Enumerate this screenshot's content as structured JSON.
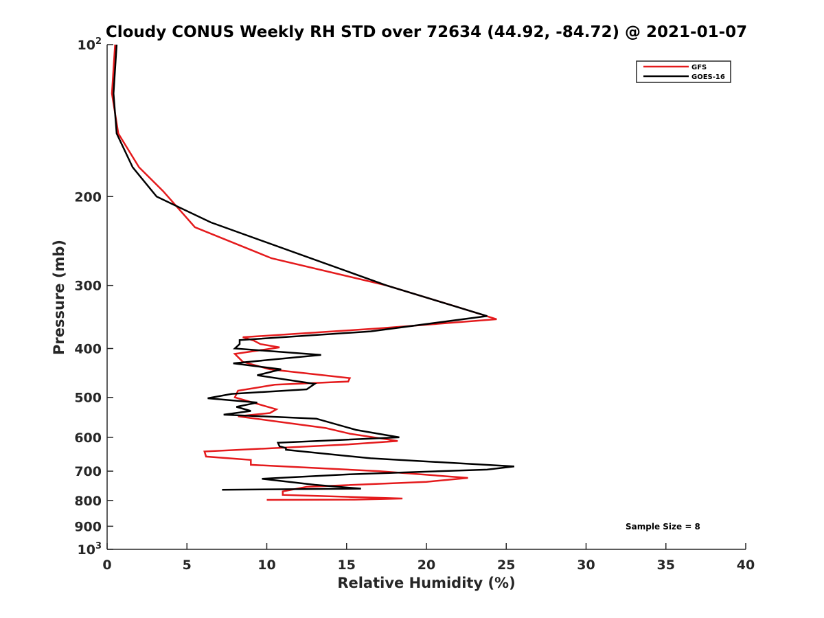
{
  "chart_data": {
    "type": "line",
    "title": "Cloudy CONUS Weekly RH STD over 72634 (44.92, -84.72) @ 2021-01-07",
    "xlabel": "Relative Humidity (%)",
    "ylabel": "Pressure (mb)",
    "xlim": [
      0,
      40
    ],
    "ylim": [
      100,
      1000
    ],
    "y_scale": "log",
    "y_reversed": true,
    "grid": false,
    "legend_position": "top-right",
    "x_ticks": [
      "0",
      "5",
      "10",
      "15",
      "20",
      "25",
      "30",
      "35",
      "40"
    ],
    "y_ticks": [
      {
        "value": 100,
        "base": "10",
        "exp": "2"
      },
      {
        "value": 200,
        "label": "200"
      },
      {
        "value": 300,
        "label": "300"
      },
      {
        "value": 400,
        "label": "400"
      },
      {
        "value": 500,
        "label": "500"
      },
      {
        "value": 600,
        "label": "600"
      },
      {
        "value": 700,
        "label": "700"
      },
      {
        "value": 800,
        "label": "800"
      },
      {
        "value": 900,
        "label": "900"
      },
      {
        "value": 1000,
        "base": "10",
        "exp": "3"
      }
    ],
    "annotation": "Sample Size = 8",
    "series": [
      {
        "name": "GFS",
        "color": "#e41a1c",
        "points": [
          [
            0.5,
            100
          ],
          [
            0.3,
            125
          ],
          [
            0.7,
            150
          ],
          [
            2.0,
            175
          ],
          [
            3.5,
            195
          ],
          [
            5.5,
            230
          ],
          [
            10.3,
            265
          ],
          [
            17.5,
            300
          ],
          [
            21.8,
            330
          ],
          [
            24.4,
            350
          ],
          [
            17.0,
            365
          ],
          [
            8.5,
            380
          ],
          [
            9.2,
            386
          ],
          [
            9.6,
            392
          ],
          [
            10.8,
            398
          ],
          [
            8.0,
            410
          ],
          [
            8.5,
            425
          ],
          [
            10.2,
            440
          ],
          [
            15.2,
            458
          ],
          [
            15.1,
            465
          ],
          [
            10.5,
            472
          ],
          [
            8.2,
            485
          ],
          [
            8.0,
            500
          ],
          [
            10.6,
            528
          ],
          [
            10.2,
            537
          ],
          [
            8.2,
            545
          ],
          [
            13.7,
            575
          ],
          [
            15.2,
            590
          ],
          [
            18.2,
            610
          ],
          [
            15.0,
            620
          ],
          [
            6.1,
            640
          ],
          [
            6.2,
            655
          ],
          [
            9.0,
            665
          ],
          [
            9.0,
            680
          ],
          [
            17.0,
            700
          ],
          [
            22.6,
            722
          ],
          [
            20.0,
            735
          ],
          [
            12.5,
            752
          ],
          [
            11.0,
            768
          ],
          [
            11.0,
            780
          ],
          [
            18.5,
            793
          ],
          [
            15.5,
            797
          ],
          [
            10.0,
            798
          ]
        ]
      },
      {
        "name": "GOES-16",
        "color": "#000000",
        "points": [
          [
            0.6,
            100
          ],
          [
            0.4,
            125
          ],
          [
            0.6,
            150
          ],
          [
            1.6,
            175
          ],
          [
            3.1,
            200
          ],
          [
            6.5,
            225
          ],
          [
            17.5,
            300
          ],
          [
            23.8,
            345
          ],
          [
            16.5,
            370
          ],
          [
            8.3,
            385
          ],
          [
            8.3,
            392
          ],
          [
            8.0,
            400
          ],
          [
            13.4,
            412
          ],
          [
            7.9,
            428
          ],
          [
            10.9,
            440
          ],
          [
            9.4,
            452
          ],
          [
            13.0,
            470
          ],
          [
            12.5,
            482
          ],
          [
            7.8,
            492
          ],
          [
            6.3,
            502
          ],
          [
            9.4,
            512
          ],
          [
            8.1,
            522
          ],
          [
            9.0,
            532
          ],
          [
            7.3,
            541
          ],
          [
            13.1,
            551
          ],
          [
            15.6,
            580
          ],
          [
            18.3,
            600
          ],
          [
            10.7,
            615
          ],
          [
            10.8,
            625
          ],
          [
            11.2,
            630
          ],
          [
            11.2,
            635
          ],
          [
            16.5,
            660
          ],
          [
            25.5,
            685
          ],
          [
            23.8,
            695
          ],
          [
            15.2,
            710
          ],
          [
            9.7,
            725
          ],
          [
            13.0,
            745
          ],
          [
            15.9,
            758
          ],
          [
            7.2,
            762
          ]
        ]
      }
    ]
  }
}
